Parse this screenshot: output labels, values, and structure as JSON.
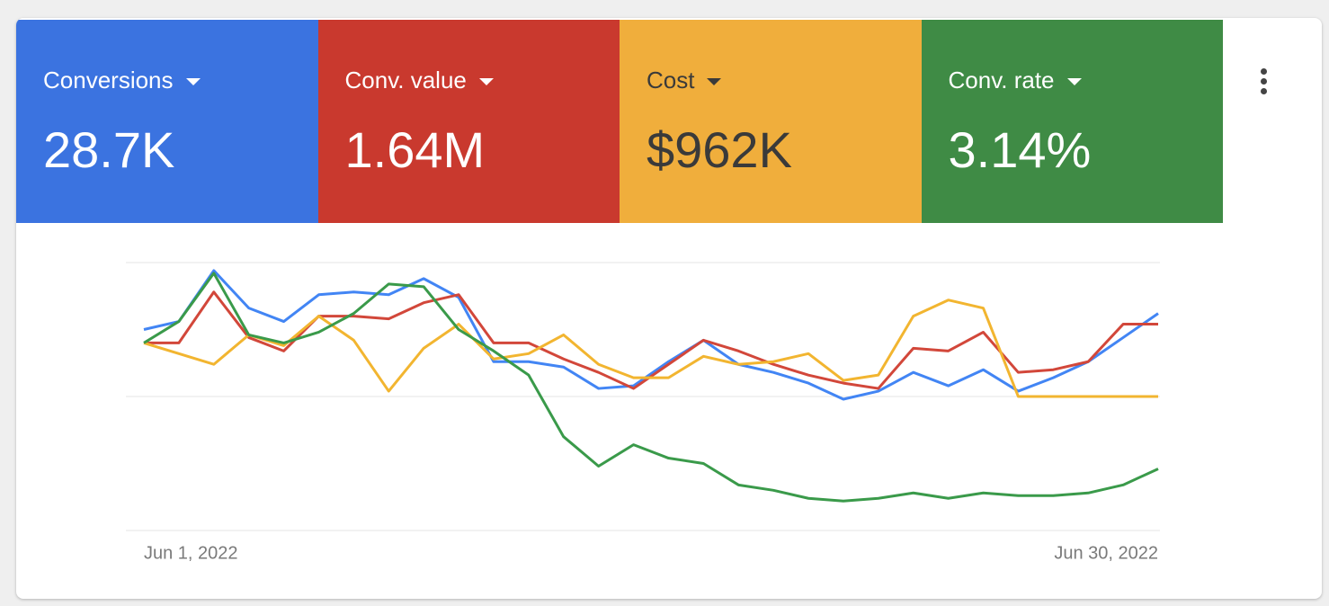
{
  "cards": [
    {
      "label": "Conversions",
      "value": "28.7K",
      "color": "#3b73e0",
      "text_color": "#ffffff"
    },
    {
      "label": "Conv. value",
      "value": "1.64M",
      "color": "#c9392e",
      "text_color": "#ffffff"
    },
    {
      "label": "Cost",
      "value": "$962K",
      "color": "#f0ae3c",
      "text_color": "#3a3a3a"
    },
    {
      "label": "Conv. rate",
      "value": "3.14%",
      "color": "#3f8b45",
      "text_color": "#ffffff"
    }
  ],
  "chart_data": {
    "type": "line",
    "categories": [
      "Jun 1, 2022",
      null,
      null,
      null,
      null,
      null,
      null,
      null,
      null,
      null,
      null,
      null,
      null,
      null,
      null,
      null,
      null,
      null,
      null,
      null,
      null,
      null,
      null,
      null,
      null,
      null,
      null,
      null,
      null,
      "Jun 30, 2022"
    ],
    "ylim": [
      0,
      100
    ],
    "series": [
      {
        "color": "#4285f4",
        "values": [
          75,
          78,
          97,
          83,
          78,
          88,
          89,
          88,
          94,
          87,
          63,
          63,
          61,
          53,
          54,
          63,
          71,
          62,
          59,
          55,
          49,
          52,
          59,
          54,
          60,
          52,
          57,
          63,
          72,
          81
        ]
      },
      {
        "color": "#d2473a",
        "values": [
          70,
          70,
          89,
          72,
          67,
          80,
          80,
          79,
          85,
          88,
          70,
          70,
          64,
          59,
          53,
          62,
          71,
          67,
          62,
          58,
          55,
          53,
          68,
          67,
          74,
          59,
          60,
          63,
          77,
          77
        ]
      },
      {
        "color": "#f2b530",
        "values": [
          70,
          66,
          62,
          73,
          69,
          80,
          71,
          52,
          68,
          77,
          64,
          66,
          73,
          62,
          57,
          57,
          65,
          62,
          63,
          66,
          56,
          58,
          80,
          86,
          83,
          50,
          50,
          50,
          50,
          50
        ]
      },
      {
        "color": "#3a9a4a",
        "values": [
          70,
          78,
          96,
          73,
          70,
          74,
          81,
          92,
          91,
          75,
          67,
          58,
          35,
          24,
          32,
          27,
          25,
          17,
          15,
          12,
          11,
          12,
          14,
          12,
          14,
          13,
          13,
          14,
          17,
          23
        ]
      }
    ]
  }
}
